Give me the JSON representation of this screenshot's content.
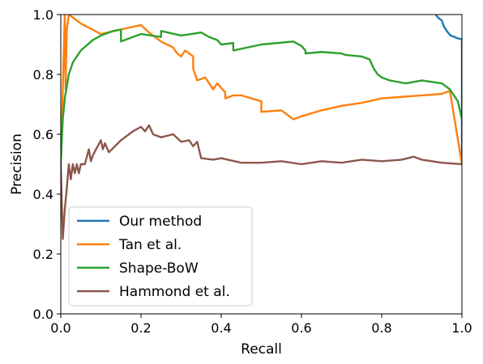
{
  "chart_data": {
    "type": "line",
    "title": "",
    "xlabel": "Recall",
    "ylabel": "Precision",
    "xlim": [
      0.0,
      1.0
    ],
    "ylim": [
      0.0,
      1.0
    ],
    "xticks": [
      "0.0",
      "0.2",
      "0.4",
      "0.6",
      "0.8",
      "1.0"
    ],
    "yticks": [
      "0.0",
      "0.2",
      "0.4",
      "0.6",
      "0.8",
      "1.0"
    ],
    "grid": false,
    "legend_position": "lower-left",
    "series": [
      {
        "name": "Our method",
        "color": "#1f77b4",
        "x": [
          0.935,
          0.94,
          0.95,
          0.955,
          0.965,
          0.972,
          0.982,
          0.99,
          1.0,
          1.0,
          1.0
        ],
        "y": [
          1.0,
          0.99,
          0.98,
          0.96,
          0.94,
          0.93,
          0.925,
          0.92,
          0.918,
          0.8,
          0.5
        ]
      },
      {
        "name": "Tan et al.",
        "color": "#ff7f0e",
        "x": [
          0.0,
          0.005,
          0.008,
          0.01,
          0.012,
          0.015,
          0.02,
          0.05,
          0.1,
          0.15,
          0.2,
          0.22,
          0.25,
          0.28,
          0.29,
          0.3,
          0.31,
          0.33,
          0.33,
          0.34,
          0.36,
          0.38,
          0.39,
          0.41,
          0.41,
          0.43,
          0.45,
          0.5,
          0.5,
          0.55,
          0.58,
          0.6,
          0.65,
          0.7,
          0.75,
          0.8,
          0.85,
          0.9,
          0.95,
          0.97,
          1.0
        ],
        "y": [
          0.5,
          0.75,
          0.9,
          1.0,
          0.75,
          0.95,
          1.0,
          0.97,
          0.935,
          0.95,
          0.965,
          0.94,
          0.91,
          0.89,
          0.87,
          0.86,
          0.88,
          0.86,
          0.82,
          0.78,
          0.79,
          0.75,
          0.77,
          0.74,
          0.72,
          0.73,
          0.73,
          0.71,
          0.675,
          0.68,
          0.65,
          0.66,
          0.68,
          0.695,
          0.705,
          0.72,
          0.725,
          0.73,
          0.735,
          0.745,
          0.5
        ]
      },
      {
        "name": "Shape-BoW",
        "color": "#2ca02c",
        "x": [
          0.0,
          0.005,
          0.01,
          0.02,
          0.03,
          0.05,
          0.08,
          0.1,
          0.13,
          0.15,
          0.15,
          0.2,
          0.25,
          0.25,
          0.3,
          0.35,
          0.37,
          0.39,
          0.4,
          0.43,
          0.43,
          0.5,
          0.58,
          0.6,
          0.61,
          0.61,
          0.65,
          0.7,
          0.71,
          0.75,
          0.77,
          0.78,
          0.79,
          0.8,
          0.82,
          0.84,
          0.86,
          0.9,
          0.95,
          0.97,
          0.99,
          1.0
        ],
        "y": [
          0.5,
          0.65,
          0.72,
          0.8,
          0.84,
          0.88,
          0.915,
          0.93,
          0.945,
          0.95,
          0.91,
          0.935,
          0.925,
          0.945,
          0.93,
          0.94,
          0.925,
          0.915,
          0.9,
          0.905,
          0.88,
          0.9,
          0.91,
          0.895,
          0.88,
          0.87,
          0.875,
          0.87,
          0.865,
          0.86,
          0.85,
          0.82,
          0.8,
          0.79,
          0.78,
          0.775,
          0.77,
          0.78,
          0.77,
          0.75,
          0.71,
          0.65
        ]
      },
      {
        "name": "Hammond et al.",
        "color": "#8c564b",
        "x": [
          0.0,
          0.005,
          0.01,
          0.015,
          0.02,
          0.025,
          0.03,
          0.035,
          0.04,
          0.045,
          0.05,
          0.06,
          0.07,
          0.075,
          0.08,
          0.1,
          0.105,
          0.11,
          0.12,
          0.15,
          0.18,
          0.2,
          0.21,
          0.22,
          0.23,
          0.25,
          0.28,
          0.3,
          0.32,
          0.33,
          0.34,
          0.35,
          0.38,
          0.4,
          0.45,
          0.5,
          0.55,
          0.6,
          0.65,
          0.7,
          0.75,
          0.8,
          0.85,
          0.88,
          0.9,
          0.95,
          1.0
        ],
        "y": [
          0.5,
          0.25,
          0.35,
          0.42,
          0.5,
          0.45,
          0.5,
          0.47,
          0.5,
          0.47,
          0.5,
          0.5,
          0.55,
          0.51,
          0.53,
          0.58,
          0.55,
          0.57,
          0.54,
          0.58,
          0.61,
          0.625,
          0.61,
          0.63,
          0.6,
          0.59,
          0.6,
          0.575,
          0.58,
          0.56,
          0.575,
          0.52,
          0.515,
          0.52,
          0.505,
          0.505,
          0.51,
          0.5,
          0.51,
          0.505,
          0.515,
          0.51,
          0.515,
          0.525,
          0.515,
          0.505,
          0.5
        ]
      }
    ]
  }
}
